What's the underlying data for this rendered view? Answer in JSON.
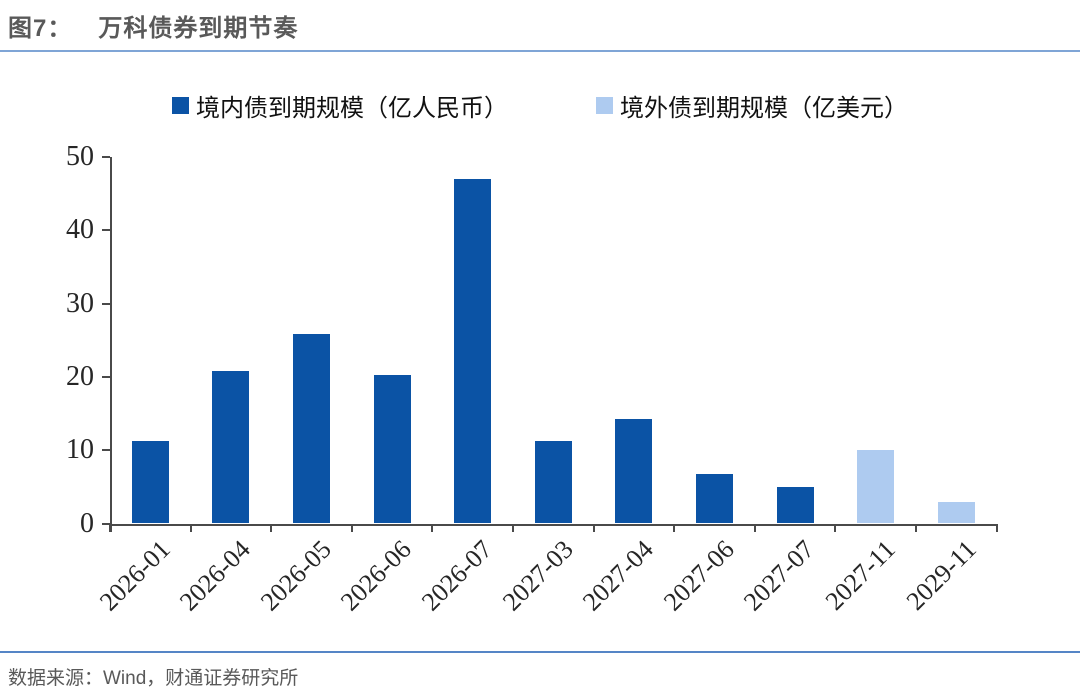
{
  "header": {
    "title_prefix": "图7：",
    "title_text": "万科债券到期节奏"
  },
  "footer": {
    "source": "数据来源：Wind，财通证券研究所"
  },
  "colors": {
    "domestic_bar": "#0b53a5",
    "offshore_bar": "#aecbf0",
    "title_rule": "#7fa5d6",
    "footer_rule": "#5585c6",
    "axis": "#4a4a4a",
    "title_gray": "#595959"
  },
  "chart_data": {
    "type": "bar",
    "title": "万科债券到期节奏",
    "categories": [
      "2026-01",
      "2026-04",
      "2026-05",
      "2026-06",
      "2026-07",
      "2027-03",
      "2027-04",
      "2027-06",
      "2027-07",
      "2027-11",
      "2029-11"
    ],
    "series": [
      {
        "name": "境内债到期规模（亿人民币）",
        "color": "#0b53a5",
        "values": [
          11.2,
          20.8,
          25.9,
          20.3,
          47.0,
          11.2,
          14.2,
          6.7,
          5.0,
          null,
          null
        ]
      },
      {
        "name": "境外债到期规模（亿美元）",
        "color": "#aecbf0",
        "values": [
          null,
          null,
          null,
          null,
          null,
          null,
          null,
          null,
          null,
          10.0,
          3.0
        ]
      }
    ],
    "xlabel": "",
    "ylabel": "",
    "ylim": [
      0,
      50
    ],
    "yticks": [
      0,
      10,
      20,
      30,
      40,
      50
    ],
    "grid": false,
    "legend_position": "top"
  }
}
